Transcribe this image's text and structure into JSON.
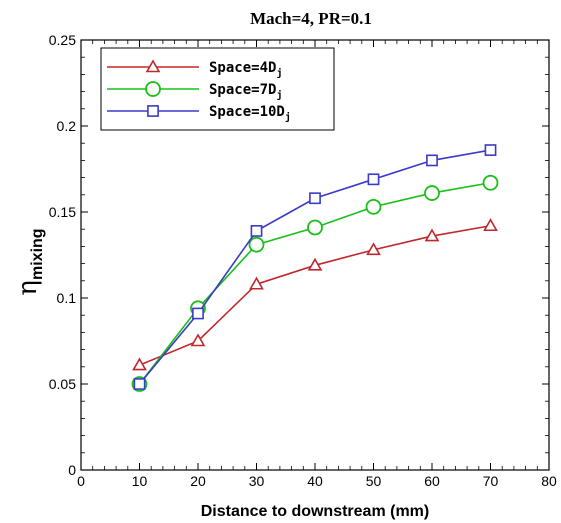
{
  "chart_data": {
    "type": "line",
    "title": "Mach=4, PR=0.1",
    "xlabel": "Distance to downstream (mm)",
    "ylabel": {
      "main": "η",
      "sub": "mixing"
    },
    "xlim": [
      0,
      80
    ],
    "ylim": [
      0,
      0.25
    ],
    "xticks": [
      "0",
      "10",
      "20",
      "30",
      "40",
      "50",
      "60",
      "70",
      "80"
    ],
    "yticks": [
      "0",
      "0.05",
      "0.1",
      "0.15",
      "0.2",
      "0.25"
    ],
    "grid": false,
    "legend_position": "top-left",
    "x": [
      10,
      20,
      30,
      40,
      50,
      60,
      70
    ],
    "series": [
      {
        "name": "Space=4D",
        "name_sub": "j",
        "color": "#c0282d",
        "marker": "triangle",
        "values": [
          0.061,
          0.075,
          0.108,
          0.119,
          0.128,
          0.136,
          0.142
        ]
      },
      {
        "name": "Space=7D",
        "name_sub": "j",
        "color": "#19c019",
        "marker": "circle",
        "values": [
          0.05,
          0.094,
          0.131,
          0.141,
          0.153,
          0.161,
          0.167
        ]
      },
      {
        "name": "Space=10D",
        "name_sub": "j",
        "color": "#3b3bc8",
        "marker": "square",
        "values": [
          0.05,
          0.091,
          0.139,
          0.158,
          0.169,
          0.18,
          0.186
        ]
      }
    ]
  }
}
